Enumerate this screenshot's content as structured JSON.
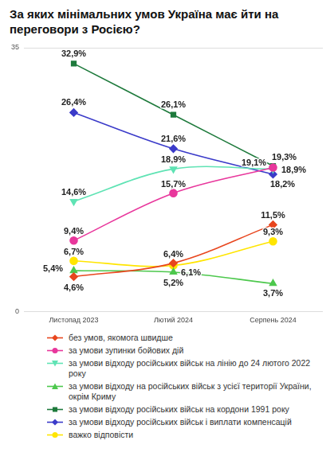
{
  "chart_data": {
    "type": "line",
    "title": "За яких мінімальних умов Україна має йти на переговори з Росією?",
    "categories": [
      "Листопад 2023",
      "Лютий 2024",
      "Серпень 2024"
    ],
    "ylim": [
      0,
      35
    ],
    "yticks": [
      0,
      35
    ],
    "grid": true,
    "legend": "bottom",
    "data_labels": true,
    "series": [
      {
        "name": "без умов, якомога швидше",
        "color": "#e8461e",
        "marker": "diamond",
        "values": [
          4.6,
          6.4,
          11.5
        ],
        "value_labels": [
          "4,6%",
          "6,4%",
          "11,5%"
        ]
      },
      {
        "name": "за умови зупинки бойових дій",
        "color": "#e8379c",
        "marker": "circle",
        "values": [
          9.4,
          15.7,
          19.1
        ],
        "value_labels": [
          "9,4%",
          "15,7%",
          "19,1%"
        ]
      },
      {
        "name": "за умови відходу російських військ на лінію до 24 лютого 2022 року",
        "color": "#5fe3b4",
        "marker": "triangle-down",
        "values": [
          14.6,
          18.9,
          18.9
        ],
        "value_labels": [
          "14,6%",
          "18,9%",
          "18,9%"
        ]
      },
      {
        "name": "за умови відходу на російських військ з усієї території України, окрім Криму",
        "color": "#4dc84d",
        "marker": "triangle",
        "values": [
          5.4,
          5.2,
          3.7
        ],
        "value_labels": [
          "5,4%",
          "5,2%",
          "3,7%"
        ]
      },
      {
        "name": "за умови відходу російських військ на кордони 1991 року",
        "color": "#1e7a3c",
        "marker": "square",
        "values": [
          32.9,
          26.1,
          19.3
        ],
        "value_labels": [
          "32,9%",
          "26,1%",
          "19,3%"
        ]
      },
      {
        "name": "за умови відходу російських військ і виплати компенсацій",
        "color": "#3b3bc9",
        "marker": "diamond",
        "values": [
          26.4,
          21.6,
          18.2
        ],
        "value_labels": [
          "26,4%",
          "21,6%",
          "18,2%"
        ]
      },
      {
        "name": "важко відповісти",
        "color": "#ffe500",
        "marker": "circle",
        "values": [
          6.7,
          6.1,
          9.3
        ],
        "value_labels": [
          "6,7%",
          "6,1%",
          "9,3%"
        ]
      }
    ]
  }
}
